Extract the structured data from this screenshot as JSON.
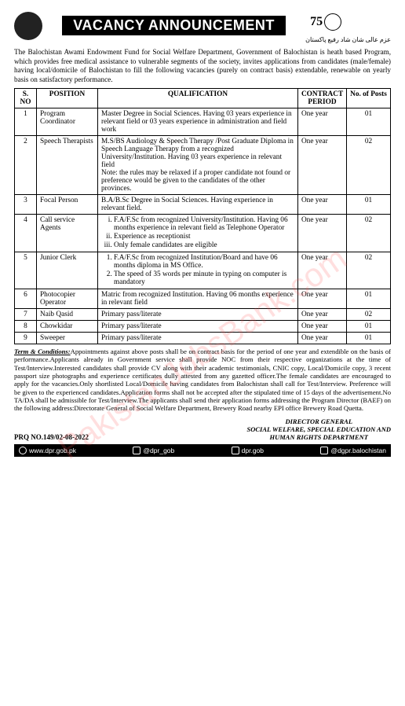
{
  "header": {
    "title": "VACANCY ANNOUNCEMENT",
    "right_number": "75",
    "urdu": "عزم عالی شان شاد رفیع پاکستان"
  },
  "intro": "The Balochistan Awami Endowment Fund for Social Welfare Department, Government of Balochistan is heath based Program, which provides free medical assistance to vulnerable segments of the society, invites applications from candidates (male/female) having local/domicile of Balochistan to fill the following vacancies (purely on contract basis) extendable, renewable on yearly basis on satisfactory performance.",
  "columns": {
    "sno": "S. NO",
    "position": "POSITION",
    "qualification": "QUALIFICATION",
    "contract": "CONTRACT PERIOD",
    "posts": "No. of Posts"
  },
  "rows": [
    {
      "sno": "1",
      "position": "Program Coordinator",
      "qual": "Master Degree in Social Sciences. Having 03 years experience in relevant field or 03 years experience in administration and field work",
      "contract": "One year",
      "posts": "01"
    },
    {
      "sno": "2",
      "position": "Speech Therapists",
      "qual": "M.S/BS Audiology & Speech Therapy /Post Graduate Diploma in Speech Language Therapy from a recognized University/Institution. Having 03 years experience in relevant field\nNote: the rules may be relaxed if a proper candidate not found or preference would be given to the candidates of the other provinces.",
      "contract": "One year",
      "posts": "02"
    },
    {
      "sno": "3",
      "position": "Focal Person",
      "qual": "B.A/B.Sc Degree in Social Sciences. Having experience in relevant field.",
      "contract": "One year",
      "posts": "01"
    },
    {
      "sno": "4",
      "position": "Call service Agents",
      "qual_list": [
        "F.A/F.Sc from recognized University/Institution. Having 06 months experience in relevant field as Telephone Operator",
        "Experience as receptionist",
        "Only female candidates are eligible"
      ],
      "list_type": "roman",
      "contract": "One year",
      "posts": "02"
    },
    {
      "sno": "5",
      "position": "Junior Clerk",
      "qual_list": [
        "F.A/F.Sc from recognized Institution/Board and have 06 months diploma in MS Office.",
        "The speed of 35 words per minute in typing on computer is mandatory"
      ],
      "list_type": "decimal",
      "contract": "One year",
      "posts": "02"
    },
    {
      "sno": "6",
      "position": "Photocopier Operator",
      "qual": "Matric from recognized Institution. Having 06 months experience in relevant field",
      "contract": "One year",
      "posts": "01"
    },
    {
      "sno": "7",
      "position": "Naib Qasid",
      "qual": "Primary pass/literate",
      "contract": "One year",
      "posts": "02"
    },
    {
      "sno": "8",
      "position": "Chowkidar",
      "qual": "Primary pass/literate",
      "contract": "One year",
      "posts": "01"
    },
    {
      "sno": "9",
      "position": "Sweeper",
      "qual": "Primary pass/literate",
      "contract": "One year",
      "posts": "01"
    }
  ],
  "terms": {
    "label": "Term & Conditions:",
    "text": "Appointments against above posts shall be on contract basis for the period of one year and extendible on the basis of performance.Applicants already in Government service shall provide NOC from their respective organizations at the time of Test/Interview.Interested candidates shall provide CV along with their academic testimonials, CNIC copy, Local/Domicile copy, 3 recent passport size photographs and experience certificates dully attested from any gazetted officer.The female candidates are encouraged to apply for the vacancies.Only shortlisted Local/Domicile having candidates from Balochistan shall call for Test/Interview. Preference will be given to the experienced candidates.Application forms shall not be accepted after the stipulated time of 15 days of the advertisement.No TA/DA shall be admissible for Test/Interview.The applicants shall send their application forms addressing the Program Director (BAEF) on the following address:Directorate General of Social Welfare Department, Brewery Road nearby  EPI office Brewery Road Quetta."
  },
  "prq": "PRQ NO.149/02-08-2022",
  "director": {
    "l1": "DIRECTOR GENERAL",
    "l2": "SOCIAL WELFARE, SPECIAL EDUCATION AND",
    "l3": "HUMAN RIGHTS DEPARTMENT"
  },
  "footer": {
    "web": "www.dpr.gob.pk",
    "tw": "@dpr_gob",
    "ig": "dpr.gob",
    "fb": "@dgpr.balochistan"
  },
  "watermark": "PakistanJobsBank.com",
  "colors": {
    "banner_bg": "#000000",
    "banner_fg": "#ffffff",
    "border": "#000000",
    "watermark": "rgba(255,80,80,0.18)"
  }
}
